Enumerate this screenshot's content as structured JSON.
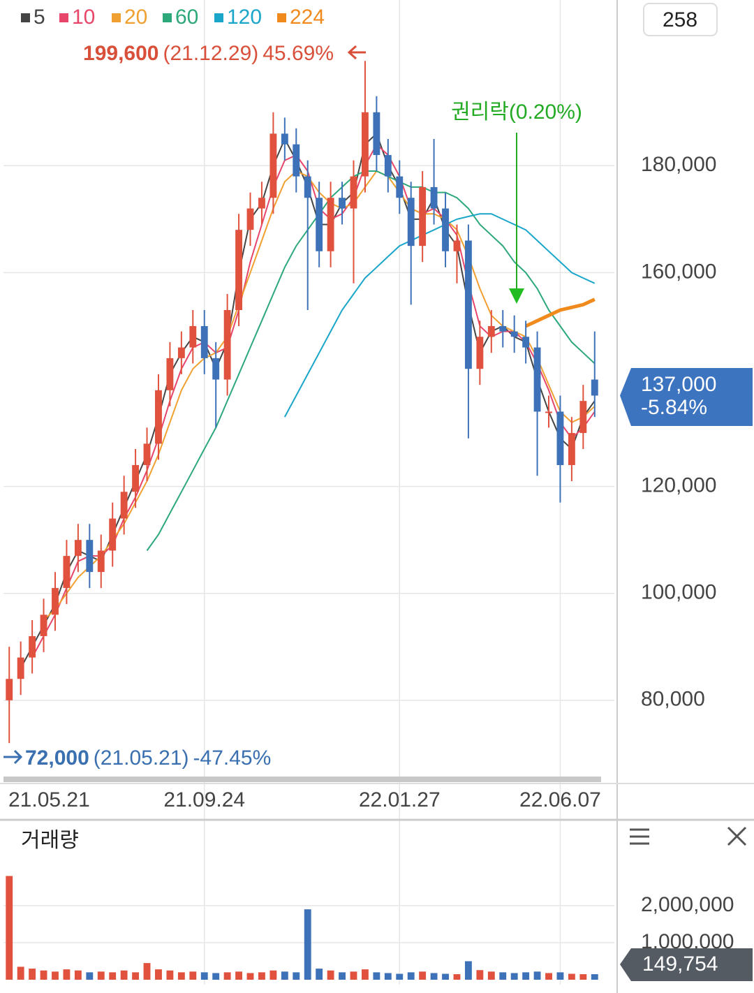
{
  "chart_data": {
    "type": "candlestick",
    "categories": [
      "21.05.21",
      null,
      null,
      null,
      null,
      null,
      null,
      null,
      null,
      null,
      null,
      null,
      null,
      null,
      null,
      null,
      null,
      "21.09.24",
      null,
      null,
      null,
      null,
      null,
      null,
      null,
      null,
      null,
      null,
      null,
      null,
      null,
      null,
      null,
      null,
      "22.01.27",
      null,
      null,
      null,
      null,
      null,
      null,
      null,
      null,
      null,
      null,
      null,
      null,
      null,
      "22.06.07",
      null,
      null,
      null
    ],
    "open": [
      80000,
      84000,
      88000,
      92000,
      96000,
      101000,
      107000,
      110000,
      104000,
      108000,
      114000,
      119000,
      124000,
      128000,
      138000,
      144000,
      146000,
      150000,
      144000,
      140000,
      153000,
      168000,
      172000,
      174000,
      186000,
      184000,
      178000,
      174000,
      164000,
      174000,
      172000,
      178000,
      190000,
      182000,
      178000,
      174000,
      165000,
      176000,
      172000,
      164000,
      166000,
      142000,
      148000,
      150000,
      149000,
      148000,
      146000,
      134000,
      134000,
      124000,
      130000,
      140000
    ],
    "high": [
      90000,
      91000,
      95000,
      99000,
      104000,
      110000,
      113000,
      113000,
      111000,
      117000,
      122000,
      127000,
      131000,
      141000,
      147000,
      149000,
      153000,
      153000,
      147000,
      156000,
      171000,
      175000,
      177000,
      190000,
      189000,
      187000,
      181000,
      177000,
      177000,
      177000,
      181000,
      199600,
      193000,
      185000,
      181000,
      177000,
      179000,
      185000,
      175000,
      169000,
      169000,
      151000,
      153000,
      153000,
      152000,
      151000,
      149000,
      137000,
      137000,
      133000,
      139000,
      149000
    ],
    "low": [
      72000,
      81000,
      85000,
      89000,
      93000,
      98000,
      104000,
      101000,
      101000,
      105000,
      111000,
      116000,
      121000,
      125000,
      135000,
      141000,
      143000,
      141000,
      131000,
      137000,
      150000,
      165000,
      169000,
      171000,
      181000,
      175000,
      153000,
      161000,
      161000,
      169000,
      158000,
      175000,
      179000,
      175000,
      171000,
      154000,
      162000,
      169000,
      161000,
      158000,
      129000,
      139000,
      145000,
      146000,
      145000,
      143000,
      122000,
      131000,
      117000,
      121000,
      127000,
      133000
    ],
    "close": [
      84000,
      88000,
      92000,
      96000,
      101000,
      107000,
      110000,
      104000,
      108000,
      114000,
      119000,
      124000,
      128000,
      138000,
      144000,
      146000,
      150000,
      144000,
      140000,
      153000,
      168000,
      172000,
      174000,
      186000,
      184000,
      178000,
      174000,
      164000,
      174000,
      172000,
      178000,
      190000,
      182000,
      178000,
      174000,
      165000,
      176000,
      172000,
      164000,
      166000,
      142000,
      148000,
      150000,
      149000,
      148000,
      146000,
      134000,
      134000,
      124000,
      130000,
      136000,
      137000
    ],
    "up_color": "#e0523e",
    "down_color": "#3d72b8",
    "ylim": [
      66000,
      211000
    ],
    "yticks": [
      {
        "value": 80000,
        "label": "80,000"
      },
      {
        "value": 100000,
        "label": "100,000"
      },
      {
        "value": 120000,
        "label": "120,000"
      },
      {
        "value": 160000,
        "label": "160,000"
      },
      {
        "value": 180000,
        "label": "180,000"
      }
    ],
    "grid": true,
    "legend": "top-left",
    "series": [
      {
        "name": "5",
        "color": "#444444",
        "values": [
          null,
          86000,
          90000,
          94000,
          98000,
          104000,
          108000,
          107000,
          106000,
          111000,
          116000,
          121000,
          126000,
          133000,
          141000,
          145000,
          148000,
          147000,
          142000,
          147000,
          160000,
          170000,
          173000,
          180000,
          185000,
          181000,
          176000,
          169000,
          169000,
          173000,
          175000,
          184000,
          186000,
          180000,
          176000,
          170000,
          170000,
          174000,
          168000,
          165000,
          154000,
          145000,
          149000,
          150000,
          148000,
          147000,
          140000,
          134000,
          129000,
          127000,
          133000,
          136000
        ]
      },
      {
        "name": "10",
        "color": "#e8456a",
        "values": [
          null,
          null,
          88000,
          92000,
          96000,
          101000,
          106000,
          107000,
          107000,
          109000,
          114000,
          118000,
          123000,
          129000,
          136000,
          142000,
          146000,
          147000,
          145000,
          146000,
          153000,
          162000,
          169000,
          176000,
          181000,
          182000,
          179000,
          172000,
          170000,
          171000,
          174000,
          180000,
          184000,
          182000,
          178000,
          172000,
          171000,
          172000,
          170000,
          167000,
          158000,
          150000,
          148000,
          149000,
          149000,
          147000,
          143000,
          138000,
          132000,
          129000,
          131000,
          134000
        ]
      },
      {
        "name": "20",
        "color": "#f0a030",
        "values": [
          null,
          null,
          null,
          95000,
          97000,
          100000,
          103000,
          105000,
          107000,
          110000,
          113000,
          117000,
          121000,
          126000,
          132000,
          138000,
          142000,
          144000,
          145000,
          148000,
          154000,
          160000,
          166000,
          172000,
          177000,
          179000,
          178000,
          175000,
          173000,
          172000,
          173000,
          176000,
          179000,
          178000,
          175000,
          172000,
          171000,
          171000,
          170000,
          168000,
          163000,
          157000,
          152000,
          150000,
          149000,
          148000,
          144000,
          139000,
          134000,
          132000,
          133000,
          135000
        ]
      },
      {
        "name": "60",
        "color": "#2ca87a",
        "values": [
          null,
          null,
          null,
          null,
          null,
          null,
          null,
          null,
          null,
          null,
          null,
          null,
          108000,
          111000,
          115000,
          119000,
          123000,
          127000,
          131000,
          136000,
          141000,
          146000,
          151000,
          156000,
          161000,
          165000,
          168000,
          171000,
          174000,
          176000,
          178000,
          179000,
          179000,
          178000,
          177000,
          176000,
          176000,
          175000,
          175000,
          174000,
          172000,
          169000,
          167000,
          165000,
          162000,
          160000,
          157000,
          153000,
          150000,
          147000,
          145000,
          143000
        ]
      },
      {
        "name": "120",
        "color": "#19a6c9",
        "values": [
          null,
          null,
          null,
          null,
          null,
          null,
          null,
          null,
          null,
          null,
          null,
          null,
          null,
          null,
          null,
          null,
          null,
          null,
          null,
          null,
          null,
          null,
          null,
          null,
          133000,
          137000,
          141000,
          145000,
          149000,
          153000,
          156000,
          159000,
          161000,
          163000,
          165000,
          166000,
          167000,
          168000,
          169000,
          170000,
          170500,
          171000,
          171000,
          170000,
          169000,
          168000,
          166000,
          164000,
          162000,
          160000,
          159000,
          158000
        ]
      },
      {
        "name": "224",
        "color": "#f08a1c",
        "values": [
          null,
          null,
          null,
          null,
          null,
          null,
          null,
          null,
          null,
          null,
          null,
          null,
          null,
          null,
          null,
          null,
          null,
          null,
          null,
          null,
          null,
          null,
          null,
          null,
          null,
          null,
          null,
          null,
          null,
          null,
          null,
          null,
          null,
          null,
          null,
          null,
          null,
          null,
          null,
          null,
          null,
          null,
          null,
          null,
          null,
          150000,
          151000,
          152000,
          153000,
          153500,
          154000,
          155000
        ]
      }
    ],
    "count": 258,
    "max": {
      "value": 199600,
      "label": "199,600",
      "date": "(21.12.29)",
      "change": "45.69%"
    },
    "min": {
      "value": 72000,
      "label": "72,000",
      "date": "(21.05.21)",
      "change": "-47.45%"
    },
    "last": {
      "value": 137000,
      "label": "137,000",
      "change": "-5.84%"
    },
    "annotation": "권리락(0.20%)",
    "volume": {
      "title": "거래량",
      "values": [
        2800000,
        350000,
        300000,
        250000,
        220000,
        280000,
        250000,
        200000,
        220000,
        200000,
        250000,
        200000,
        450000,
        280000,
        250000,
        200000,
        220000,
        200000,
        180000,
        200000,
        220000,
        180000,
        200000,
        250000,
        220000,
        200000,
        1900000,
        300000,
        250000,
        200000,
        220000,
        280000,
        200000,
        180000,
        160000,
        200000,
        220000,
        180000,
        160000,
        150000,
        500000,
        260000,
        220000,
        200000,
        180000,
        200000,
        220000,
        180000,
        200000,
        160000,
        150000,
        149754
      ],
      "ylim": [
        0,
        3260000
      ],
      "yticks": [
        {
          "value": 1000000,
          "label": "1,000,000"
        },
        {
          "value": 2000000,
          "label": "2,000,000"
        }
      ],
      "last": {
        "value": 149754,
        "label": "149,754"
      }
    }
  }
}
